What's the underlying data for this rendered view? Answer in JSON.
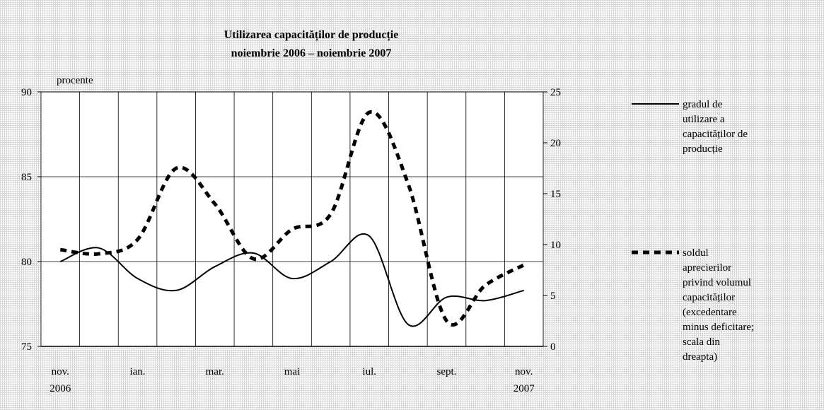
{
  "chart_data": {
    "type": "line",
    "title": [
      "Utilizarea capacităților de producție",
      "noiembrie 2006 – noiembrie 2007"
    ],
    "y_axis_label": "procente",
    "categories": [
      "nov. 2006",
      null,
      "ian.",
      null,
      "mar.",
      null,
      "mai",
      null,
      "iul.",
      null,
      "sept.",
      null,
      "nov. 2007"
    ],
    "ylim": [
      75,
      90
    ],
    "yticks": [
      75,
      80,
      85,
      90
    ],
    "y2lim": [
      0,
      25
    ],
    "y2ticks": [
      0,
      5,
      10,
      15,
      20,
      25
    ],
    "grid": true,
    "legend": "right",
    "series": [
      {
        "name": "gradul de utilizare a capacităților de producție",
        "color": "#000000",
        "dash": "solid",
        "values": [
          80.0,
          80.8,
          79.0,
          78.3,
          79.7,
          80.5,
          79.0,
          80.0,
          81.5,
          76.3,
          77.9,
          77.7,
          78.3
        ]
      },
      {
        "name": "soldul aprecierilor privind volumul capacităților (excedentare minus deficitare; scala din dreapta)",
        "color": "#000000",
        "dash": "dashed",
        "axis": "y2",
        "values": [
          9.5,
          9.1,
          10.5,
          17.5,
          14.0,
          8.6,
          11.5,
          13.0,
          23.0,
          16.0,
          2.5,
          6.0,
          8.0
        ]
      }
    ]
  }
}
